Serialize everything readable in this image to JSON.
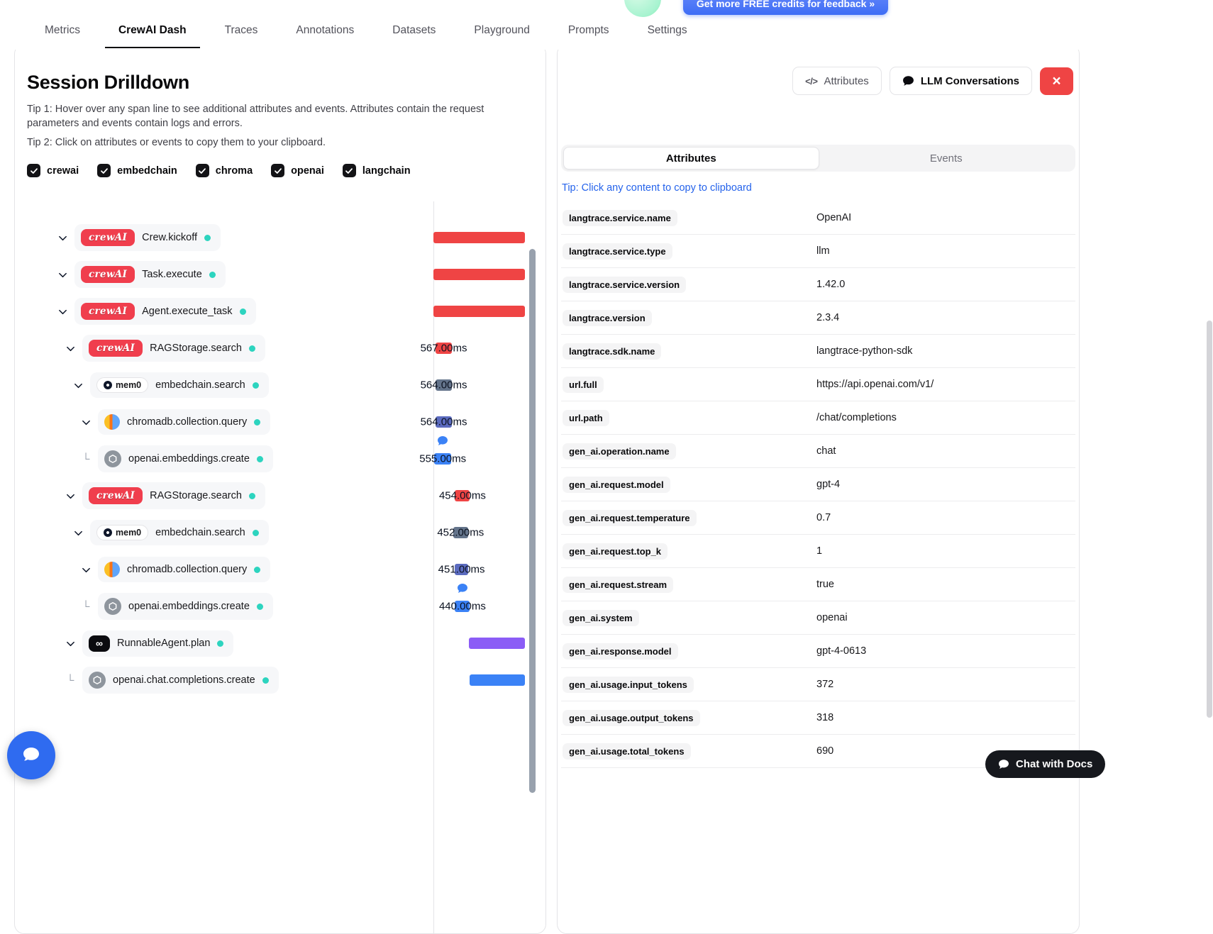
{
  "nav": {
    "credits_button_label": "Get more FREE credits for feedback  »",
    "tabs": [
      {
        "label": "Metrics",
        "active": false
      },
      {
        "label": "CrewAI Dash",
        "active": true
      },
      {
        "label": "Traces",
        "active": false
      },
      {
        "label": "Annotations",
        "active": false
      },
      {
        "label": "Datasets",
        "active": false
      },
      {
        "label": "Playground",
        "active": false
      },
      {
        "label": "Prompts",
        "active": false
      },
      {
        "label": "Settings",
        "active": false
      }
    ]
  },
  "icons": {
    "crewai_logo_text": "crewAI",
    "mem0_logo_text": "mem0",
    "langchain_glyph": "∞",
    "code_glyph": "</>",
    "close_glyph": "×",
    "elbow_glyph": "└"
  },
  "colors": {
    "crewai_red": "#ef4444",
    "embedchain_slate": "#64748b",
    "chroma_indigo": "#5b6bbf",
    "openai_blue": "#3b82f6",
    "langchain_purple": "#8b5cf6",
    "status_dot_teal": "#2dd4bf",
    "tip_link_blue": "#2563eb",
    "close_button_red": "#ef4444",
    "chat_launcher_blue": "#2f6bf0",
    "docs_button_black": "#16181d"
  },
  "session": {
    "title": "Session Drilldown",
    "tip1": "Tip 1: Hover over any span line to see additional attributes and events. Attributes contain the request parameters and events contain logs and errors.",
    "tip2": "Tip 2: Click on attributes or events to copy them to your clipboard.",
    "filters": [
      {
        "label": "crewai",
        "checked": true
      },
      {
        "label": "embedchain",
        "checked": true
      },
      {
        "label": "chroma",
        "checked": true
      },
      {
        "label": "openai",
        "checked": true
      },
      {
        "label": "langchain",
        "checked": true
      }
    ],
    "spans": [
      {
        "name": "Crew.kickoff",
        "vendor": "crewai",
        "depth": 0,
        "leaf": false,
        "duration": "",
        "bubble": false,
        "bar": {
          "left_pct": 0,
          "width_pct": 98,
          "color": "#ef4444"
        }
      },
      {
        "name": "Task.execute",
        "vendor": "crewai",
        "depth": 0,
        "leaf": false,
        "duration": "",
        "bubble": false,
        "bar": {
          "left_pct": 0,
          "width_pct": 98,
          "color": "#ef4444"
        }
      },
      {
        "name": "Agent.execute_task",
        "vendor": "crewai",
        "depth": 0,
        "leaf": false,
        "duration": "",
        "bubble": false,
        "bar": {
          "left_pct": 0,
          "width_pct": 98,
          "color": "#ef4444"
        }
      },
      {
        "name": "RAGStorage.search",
        "vendor": "crewai",
        "depth": 1,
        "leaf": false,
        "duration": "567.00ms",
        "bubble": false,
        "bar": {
          "left_pct": 2,
          "width_pct": 18,
          "color": "#ef4444"
        }
      },
      {
        "name": "embedchain.search",
        "vendor": "mem0",
        "depth": 2,
        "leaf": false,
        "duration": "564.00ms",
        "bubble": false,
        "bar": {
          "left_pct": 2,
          "width_pct": 18,
          "color": "#64748b"
        }
      },
      {
        "name": "chromadb.collection.query",
        "vendor": "chroma",
        "depth": 3,
        "leaf": false,
        "duration": "564.00ms",
        "bubble": false,
        "bar": {
          "left_pct": 2,
          "width_pct": 18,
          "color": "#5b6bbf"
        }
      },
      {
        "name": "openai.embeddings.create",
        "vendor": "openai",
        "depth": 3,
        "leaf": true,
        "duration": "555.00ms",
        "bubble": true,
        "bar": {
          "left_pct": 1,
          "width_pct": 18,
          "color": "#3b82f6"
        }
      },
      {
        "name": "RAGStorage.search",
        "vendor": "crewai",
        "depth": 1,
        "leaf": false,
        "duration": "454.00ms",
        "bubble": false,
        "bar": {
          "left_pct": 23,
          "width_pct": 16,
          "color": "#ef4444"
        }
      },
      {
        "name": "embedchain.search",
        "vendor": "mem0",
        "depth": 2,
        "leaf": false,
        "duration": "452.00ms",
        "bubble": false,
        "bar": {
          "left_pct": 21,
          "width_pct": 16,
          "color": "#64748b"
        }
      },
      {
        "name": "chromadb.collection.query",
        "vendor": "chroma",
        "depth": 3,
        "leaf": false,
        "duration": "451.00ms",
        "bubble": false,
        "bar": {
          "left_pct": 23,
          "width_pct": 14,
          "color": "#5b6bbf"
        }
      },
      {
        "name": "openai.embeddings.create",
        "vendor": "openai",
        "depth": 3,
        "leaf": true,
        "duration": "440.00ms",
        "bubble": true,
        "bar": {
          "left_pct": 23,
          "width_pct": 16,
          "color": "#3b82f6"
        }
      },
      {
        "name": "RunnableAgent.plan",
        "vendor": "langchain",
        "depth": 1,
        "leaf": false,
        "duration": "",
        "bubble": false,
        "bar": {
          "left_pct": 38,
          "width_pct": 60,
          "color": "#8b5cf6"
        }
      },
      {
        "name": "openai.chat.completions.create",
        "vendor": "openai",
        "depth": 1,
        "leaf": true,
        "duration": "",
        "bubble": false,
        "bar": {
          "left_pct": 39,
          "width_pct": 59,
          "color": "#3b82f6"
        }
      }
    ]
  },
  "details": {
    "attributes_button_label": "Attributes",
    "llm_button_label": "LLM Conversations",
    "tabs": [
      {
        "label": "Attributes",
        "active": true
      },
      {
        "label": "Events",
        "active": false
      }
    ],
    "copy_tip": "Tip: Click any content to copy to clipboard",
    "rows": [
      {
        "key": "langtrace.service.name",
        "value": "OpenAI"
      },
      {
        "key": "langtrace.service.type",
        "value": "llm"
      },
      {
        "key": "langtrace.service.version",
        "value": "1.42.0"
      },
      {
        "key": "langtrace.version",
        "value": "2.3.4"
      },
      {
        "key": "langtrace.sdk.name",
        "value": "langtrace-python-sdk"
      },
      {
        "key": "url.full",
        "value": "https://api.openai.com/v1/"
      },
      {
        "key": "url.path",
        "value": "/chat/completions"
      },
      {
        "key": "gen_ai.operation.name",
        "value": "chat"
      },
      {
        "key": "gen_ai.request.model",
        "value": "gpt-4"
      },
      {
        "key": "gen_ai.request.temperature",
        "value": "0.7"
      },
      {
        "key": "gen_ai.request.top_k",
        "value": "1"
      },
      {
        "key": "gen_ai.request.stream",
        "value": "true"
      },
      {
        "key": "gen_ai.system",
        "value": "openai"
      },
      {
        "key": "gen_ai.response.model",
        "value": "gpt-4-0613"
      },
      {
        "key": "gen_ai.usage.input_tokens",
        "value": "372"
      },
      {
        "key": "gen_ai.usage.output_tokens",
        "value": "318"
      },
      {
        "key": "gen_ai.usage.total_tokens",
        "value": "690"
      }
    ]
  },
  "chat": {
    "docs_button_label": "Chat with Docs"
  }
}
